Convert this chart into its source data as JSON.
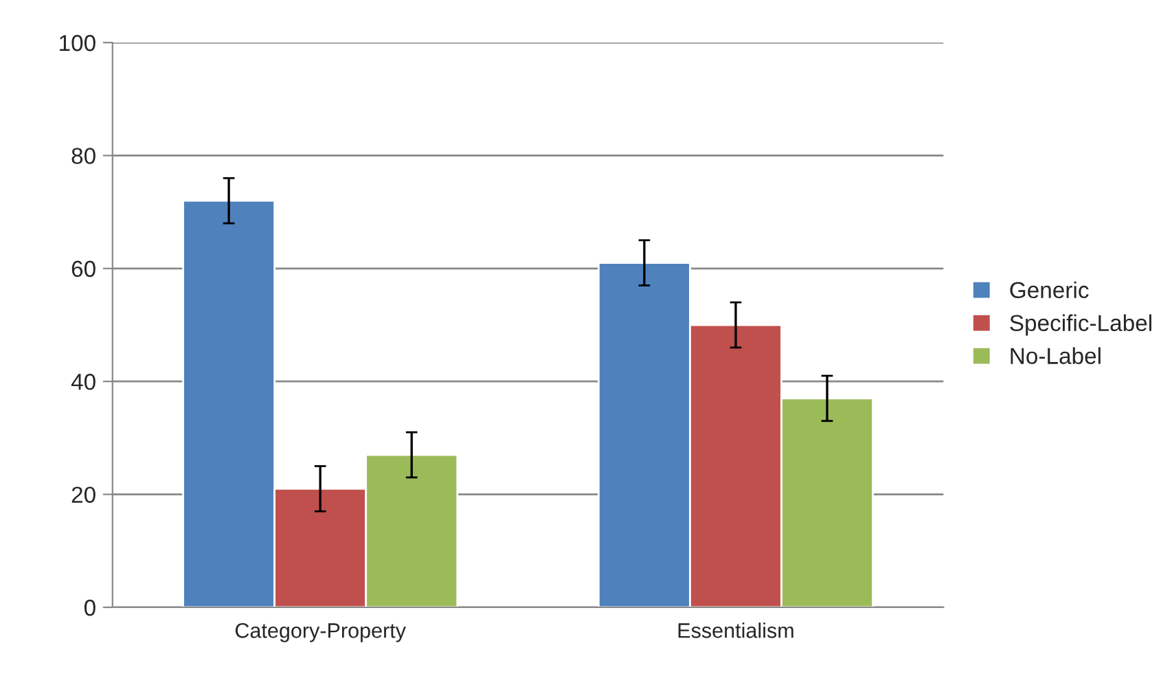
{
  "chart_data": {
    "type": "bar",
    "categories": [
      "Category-Property",
      "Essentialism"
    ],
    "series": [
      {
        "name": "Generic",
        "color": "#4f81bd",
        "values": [
          72,
          61
        ],
        "errors": [
          4,
          4
        ]
      },
      {
        "name": "Specific-Label",
        "color": "#c0504d",
        "values": [
          21,
          50
        ],
        "errors": [
          4,
          4
        ]
      },
      {
        "name": "No-Label",
        "color": "#9bbb59",
        "values": [
          27,
          37
        ],
        "errors": [
          4,
          4
        ]
      }
    ],
    "ylim": [
      0,
      100
    ],
    "yticks": [
      0,
      20,
      40,
      60,
      80,
      100
    ],
    "grid": "y",
    "legend": "right"
  }
}
